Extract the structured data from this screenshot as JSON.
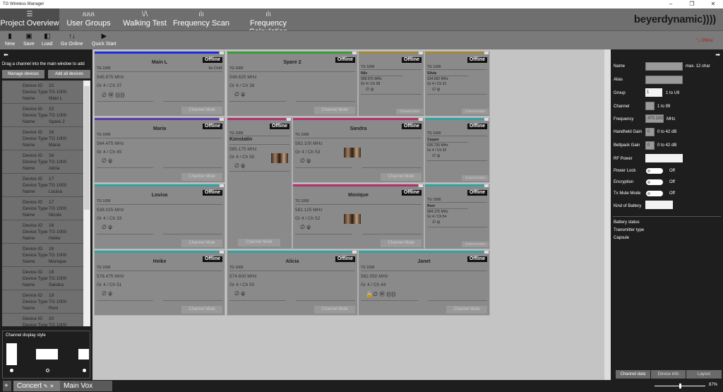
{
  "window": {
    "title": "TG Wireless Manager",
    "minimize": "–",
    "maximize": "❐",
    "close": "✕"
  },
  "nav": {
    "tabs": [
      {
        "label": "Project Overview",
        "icon": "list-icon",
        "glyph": "☰"
      },
      {
        "label": "User Groups",
        "icon": "users-icon",
        "glyph": "ጸጸጸ"
      },
      {
        "label": "Walking Test",
        "icon": "walking-test-icon",
        "glyph": "\\/\\"
      },
      {
        "label": "Frequency Scan",
        "icon": "bar-chart-icon",
        "glyph": "ılı"
      },
      {
        "label": "Frequency Calculation",
        "icon": "bar-chart-icon",
        "glyph": "ılı"
      }
    ],
    "brand": "beyerdynamic))))"
  },
  "toolbar": {
    "new": "New",
    "save": "Save",
    "load": "Load",
    "go_online": "Go Online",
    "quick_start": "Quick Start",
    "status": "Offline"
  },
  "left": {
    "hint": "Drag a channel into the main window to add",
    "manage": "Manage devices",
    "add_all": "Add all devices",
    "labels": {
      "id": "Device ID",
      "type": "Device Type",
      "name": "Name"
    },
    "devices": [
      {
        "id": "23",
        "type": "TG 1000",
        "name": "Main L"
      },
      {
        "id": "23",
        "type": "TG 1000",
        "name": "Spare 2"
      },
      {
        "id": "16",
        "type": "TG 1000",
        "name": "Maria"
      },
      {
        "id": "16",
        "type": "TG 1000",
        "name": "Alicia"
      },
      {
        "id": "17",
        "type": "TG 1000",
        "name": "Louisa"
      },
      {
        "id": "17",
        "type": "TG 1000",
        "name": "Nicole"
      },
      {
        "id": "18",
        "type": "TG 1000",
        "name": "Heike"
      },
      {
        "id": "18",
        "type": "TG 1000",
        "name": "Monique"
      },
      {
        "id": "19",
        "type": "TG 1000",
        "name": "Sandra"
      },
      {
        "id": "19",
        "type": "TG 1000",
        "name": "Reni"
      },
      {
        "id": "20",
        "type": "TG 1000",
        "name": ""
      }
    ],
    "display_style": "Channel display style"
  },
  "cards": [
    {
      "name": "Main L",
      "type": "TG 1000",
      "rx": "Rx Ch42",
      "freq": "545.975 MHz",
      "grch": "Gr 4 / Ch 37",
      "status": "Offline",
      "mute": "Channel Mute",
      "color": "#1b2fe0",
      "icons": "∅ Ⓜ ((ı))",
      "style": "large"
    },
    {
      "name": "Spare 2",
      "type": "TG 1000",
      "freq": "548.625 MHz",
      "grch": "Gr 4 / Ch 38",
      "status": "Offline",
      "mute": "Channel Mute",
      "color": "#3a9c3a",
      "icons": "∅    ψ",
      "style": "large"
    },
    {
      "name": "Nils",
      "type": "TG 1000",
      "freq": "558.575 MHz",
      "grch": "Gr 4 / Ch 58",
      "status": "Offline",
      "mute": "Channel Mute",
      "color": "#a48a38",
      "icons": "∅    ψ",
      "style": "small"
    },
    {
      "name": "Silvia",
      "type": "TG 1000",
      "freq": "534.550 MHz",
      "grch": "Gr 4 / Ch 31",
      "status": "Offline",
      "mute": "Channel Mute",
      "color": "#a48a38",
      "icons": "∅    ψ",
      "style": "small"
    },
    {
      "name": "Maria",
      "type": "TG 1000",
      "freq": "564.475 MHz",
      "grch": "Gr 4 / Ch 45",
      "status": "Offline",
      "mute": "Channel Mute",
      "color": "#5b3ca6",
      "icons": "∅    ψ",
      "style": "large"
    },
    {
      "name": "Konstatin",
      "type": "TG 1000",
      "freq": "585.175 MHz",
      "grch": "Gr 4 / Ch 55",
      "status": "Offline",
      "mute": "Channel Mute",
      "color": "#b3306f",
      "icons": "∅    ψ",
      "style": "tall"
    },
    {
      "name": "Sandra",
      "type": "TG 1000",
      "freq": "582.100 MHz",
      "grch": "Gr 4 / Ch 53",
      "status": "Offline",
      "mute": "Channel Mute",
      "color": "#b3306f",
      "icons": "∅    ψ",
      "style": "large",
      "img": true
    },
    {
      "name": "Casper",
      "type": "TG 1000",
      "freq": "526.725 MHz",
      "grch": "Gr 4 / Ch 32",
      "status": "Offline",
      "mute": "Channel Mute",
      "color": "#2fa3a3",
      "icons": "∅    ψ",
      "style": "small"
    },
    {
      "name": "Louisa",
      "type": "TG 1000",
      "freq": "538.025 MHz",
      "grch": "Gr 4 / Ch 33",
      "status": "Offline",
      "mute": "Channel Mute",
      "color": "#2fa3a3",
      "icons": "∅    ψ",
      "style": "large"
    },
    {
      "name": "Monique",
      "type": "TG 1000",
      "freq": "581.125 MHz",
      "grch": "Gr 4 / Ch 52",
      "status": "Offline",
      "mute": "Channel Mute",
      "color": "#b3306f",
      "icons": "∅    ψ",
      "style": "large",
      "img": true
    },
    {
      "name": "Reni",
      "type": "TG 1000",
      "freq": "584.175 MHz",
      "grch": "Gr 4 / Ch 54",
      "status": "Offline",
      "mute": "Channel Mute",
      "color": "#2fa3a3",
      "icons": "∅    ψ",
      "style": "small"
    },
    {
      "name": "Heike",
      "type": "TG 1000",
      "freq": "578.475 MHz",
      "grch": "Gr 4 / Ch 51",
      "status": "Offline",
      "mute": "Channel Mute",
      "color": "#2fa3a3",
      "icons": "∅    ψ",
      "style": "large"
    },
    {
      "name": "Alicia",
      "type": "TG 1000",
      "freq": "574.600 MHz",
      "grch": "Gr 4 / Ch 50",
      "status": "Offline",
      "mute": "Channel Mute",
      "color": "#2fa3a3",
      "icons": "∅    ψ",
      "style": "large"
    },
    {
      "name": "Janet",
      "type": "TG 1000",
      "freq": "562.050 MHz",
      "grch": "Gr 4 / Ch 44",
      "status": "Offline",
      "mute": "Channel Mute",
      "color": "#2fa3a3",
      "icons": "🔒∅ Ⓜ ((ı))",
      "style": "large"
    }
  ],
  "right": {
    "name": "Name",
    "name_hint": "max. 12 char",
    "alias": "Alias",
    "group": "Group",
    "group_value": "1",
    "group_hint": "1 to U9",
    "channel": "Channel",
    "channel_hint": "1 to 99",
    "frequency": "Frequency",
    "frequency_value": "470.100",
    "frequency_unit": "MHz",
    "hh_gain": "Handheld Gain",
    "hh_value": "0",
    "hh_hint": "0 to 42 dB",
    "bp_gain": "Beltpack Gain",
    "bp_value": "0",
    "bp_hint": "0 to 42 dB",
    "rf_power": "RF Power",
    "power_lock": "Power Lock",
    "encryption": "Encryption",
    "tx_mute": "Tx Mute Mode",
    "off": "Off",
    "battery_kind": "Kind of Battery",
    "battery_status": "Battery status",
    "tx_type": "Transmitter type",
    "capsule": "Capsule",
    "tabs": [
      "Channel data",
      "Device info",
      "Layout"
    ]
  },
  "bottom": {
    "add": "+",
    "tabs": [
      "Concert",
      "Main Vox"
    ],
    "zoom": "87%",
    "zoom_level": 87
  }
}
